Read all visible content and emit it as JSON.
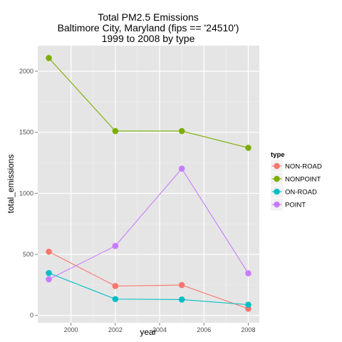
{
  "chart_data": {
    "type": "line",
    "title_lines": [
      "Total PM2.5 Emissions",
      "Baltimore City, Maryland (fips == '24510')",
      "1999 to 2008 by type"
    ],
    "xlabel": "year",
    "ylabel": "total_emissions",
    "x": [
      1999,
      2002,
      2005,
      2008
    ],
    "xlim": [
      1998.5,
      2008.5
    ],
    "ylim": [
      -60,
      2210
    ],
    "x_ticks": [
      2000,
      2002,
      2004,
      2006,
      2008
    ],
    "y_ticks": [
      0,
      500,
      1000,
      1500,
      2000
    ],
    "x_tick_labels": [
      "2000",
      "2002",
      "2004",
      "2006",
      "2008"
    ],
    "y_tick_labels": [
      "0",
      "500",
      "1000",
      "1500",
      "2000"
    ],
    "grid": true,
    "legend_title": "type",
    "legend_position": "right",
    "series": [
      {
        "name": "NON-ROAD",
        "color": "#F8766D",
        "values": [
          522,
          241,
          249,
          55
        ]
      },
      {
        "name": "NONPOINT",
        "color": "#7CAE00",
        "values": [
          2108,
          1510,
          1510,
          1373
        ]
      },
      {
        "name": "ON-ROAD",
        "color": "#00BFC4",
        "values": [
          347,
          134,
          130,
          88
        ]
      },
      {
        "name": "POINT",
        "color": "#C77CFF",
        "values": [
          296,
          569,
          1202,
          345
        ]
      }
    ]
  }
}
